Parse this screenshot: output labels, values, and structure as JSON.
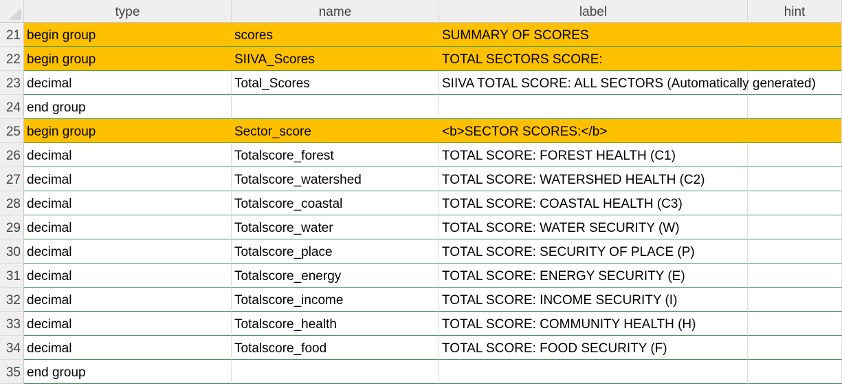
{
  "columns": {
    "type": "type",
    "name": "name",
    "label": "label",
    "hint": "hint"
  },
  "colors": {
    "group_fill": "#ffc000",
    "row_border": "#3f9a5a",
    "header_bg": "#efefef"
  },
  "rows": [
    {
      "num": "21",
      "type": "begin group",
      "name": "scores",
      "label": "SUMMARY OF SCORES",
      "hint": "",
      "group": true
    },
    {
      "num": "22",
      "type": "begin group",
      "name": "SIIVA_Scores",
      "label": "TOTAL SECTORS SCORE:",
      "hint": "",
      "group": true
    },
    {
      "num": "23",
      "type": "decimal",
      "name": "Total_Scores",
      "label": "SIIVA TOTAL SCORE: ALL SECTORS (Automatically generated)",
      "hint": "",
      "group": false
    },
    {
      "num": "24",
      "type": "end group",
      "name": "",
      "label": "",
      "hint": "",
      "group": false
    },
    {
      "num": "25",
      "type": "begin group",
      "name": "Sector_score",
      "label": "<b>SECTOR SCORES:</b>",
      "hint": "",
      "group": true
    },
    {
      "num": "26",
      "type": "decimal",
      "name": "Totalscore_forest",
      "label": "TOTAL SCORE: FOREST HEALTH (C1)",
      "hint": "",
      "group": false
    },
    {
      "num": "27",
      "type": "decimal",
      "name": "Totalscore_watershed",
      "label": "TOTAL SCORE: WATERSHED HEALTH (C2)",
      "hint": "",
      "group": false
    },
    {
      "num": "28",
      "type": "decimal",
      "name": "Totalscore_coastal",
      "label": "TOTAL SCORE: COASTAL HEALTH (C3)",
      "hint": "",
      "group": false
    },
    {
      "num": "29",
      "type": "decimal",
      "name": "Totalscore_water",
      "label": "TOTAL SCORE: WATER SECURITY (W)",
      "hint": "",
      "group": false
    },
    {
      "num": "30",
      "type": "decimal",
      "name": "Totalscore_place",
      "label": "TOTAL SCORE: SECURITY OF PLACE (P)",
      "hint": "",
      "group": false
    },
    {
      "num": "31",
      "type": "decimal",
      "name": "Totalscore_energy",
      "label": "TOTAL SCORE: ENERGY SECURITY (E)",
      "hint": "",
      "group": false
    },
    {
      "num": "32",
      "type": "decimal",
      "name": "Totalscore_income",
      "label": "TOTAL SCORE: INCOME SECURITY (I)",
      "hint": "",
      "group": false
    },
    {
      "num": "33",
      "type": "decimal",
      "name": "Totalscore_health",
      "label": "TOTAL SCORE: COMMUNITY HEALTH (H)",
      "hint": "",
      "group": false
    },
    {
      "num": "34",
      "type": "decimal",
      "name": "Totalscore_food",
      "label": "TOTAL SCORE: FOOD SECURITY (F)",
      "hint": "",
      "group": false
    },
    {
      "num": "35",
      "type": "end group",
      "name": "",
      "label": "",
      "hint": "",
      "group": false
    }
  ]
}
